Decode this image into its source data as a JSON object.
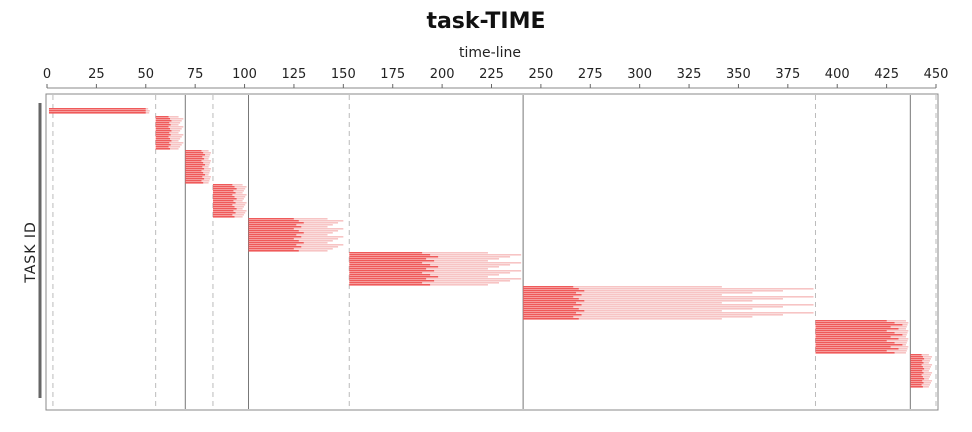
{
  "chart_data": {
    "type": "bar",
    "orientation": "horizontal-gantt",
    "title": "task-TIME",
    "xlabel": "time-line",
    "ylabel": "TASK ID",
    "xlim": [
      0,
      450
    ],
    "x_ticks": [
      0,
      25,
      50,
      75,
      100,
      125,
      150,
      175,
      200,
      225,
      250,
      275,
      300,
      325,
      350,
      375,
      400,
      425,
      450
    ],
    "x_axis_position": "top",
    "grid": false,
    "colors": {
      "solid": "#ef5a5a",
      "faded": "#f7c4c4",
      "dashed_line": "#bbbbbb",
      "solid_line": "#777777"
    },
    "boundaries": [
      {
        "x": 3,
        "style": "dashed"
      },
      {
        "x": 55,
        "style": "dashed"
      },
      {
        "x": 70,
        "style": "solid"
      },
      {
        "x": 84,
        "style": "dashed"
      },
      {
        "x": 102,
        "style": "solid"
      },
      {
        "x": 153,
        "style": "dashed"
      },
      {
        "x": 241,
        "style": "solid"
      },
      {
        "x": 389,
        "style": "dashed"
      },
      {
        "x": 437,
        "style": "solid"
      },
      {
        "x": 450,
        "style": "dashed"
      }
    ],
    "groups": [
      {
        "start": 1,
        "end_solid": 50,
        "end_faded": 52,
        "count": 3
      },
      {
        "start": 55,
        "end_solid": 63,
        "end_faded": 69,
        "count": 17
      },
      {
        "start": 70,
        "end_solid": 80,
        "end_faded": 83,
        "count": 17
      },
      {
        "start": 84,
        "end_solid": 96,
        "end_faded": 101,
        "count": 17
      },
      {
        "start": 102,
        "end_solid": 130,
        "end_faded": 150,
        "count": 17
      },
      {
        "start": 153,
        "end_solid": 198,
        "end_faded": 240,
        "count": 17
      },
      {
        "start": 241,
        "end_solid": 272,
        "end_faded": 388,
        "count": 17
      },
      {
        "start": 389,
        "end_solid": 433,
        "end_faded": 436,
        "count": 17
      },
      {
        "start": 437,
        "end_solid": 444,
        "end_faded": 448,
        "count": 17
      }
    ]
  }
}
